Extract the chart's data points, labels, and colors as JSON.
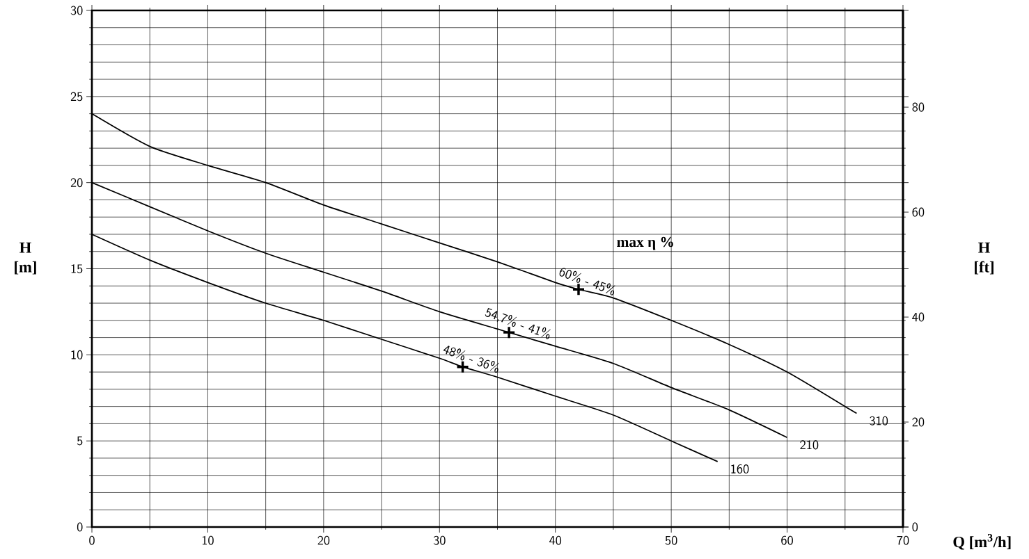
{
  "chart_data": {
    "type": "line",
    "xlabel": "Q [m$^{3}$/h]",
    "ylabel": "H [m]",
    "y2label": "H [ft]",
    "xlim": [
      0,
      70
    ],
    "ylim": [
      0,
      30
    ],
    "xticks": [
      0,
      10,
      20,
      30,
      40,
      50,
      60,
      70
    ],
    "yticks": [
      0,
      5,
      10,
      15,
      20,
      25,
      30
    ],
    "y2lim": [
      0,
      98.43
    ],
    "y2ticks": [
      0,
      20,
      40,
      60,
      80
    ],
    "grid": true,
    "line_style": "solid",
    "marker": "none",
    "series": [
      {
        "name": "310",
        "color": "#000000",
        "x": [
          0,
          5,
          10,
          15,
          20,
          25,
          30,
          35,
          40,
          42,
          45,
          50,
          55,
          60,
          65,
          66
        ],
        "values": [
          24,
          22.1,
          21.0,
          20.0,
          18.7,
          17.6,
          16.5,
          15.4,
          14.2,
          13.8,
          13.3,
          12.0,
          10.6,
          9.0,
          7.0,
          6.6
        ]
      },
      {
        "name": "210",
        "color": "#000000",
        "x": [
          0,
          5,
          10,
          15,
          20,
          25,
          30,
          35,
          36,
          40,
          45,
          50,
          55,
          60
        ],
        "values": [
          20,
          18.6,
          17.2,
          15.9,
          14.8,
          13.7,
          12.5,
          11.5,
          11.3,
          10.5,
          9.5,
          8.1,
          6.8,
          5.2
        ]
      },
      {
        "name": "160",
        "color": "#000000",
        "x": [
          0,
          5,
          10,
          15,
          20,
          25,
          30,
          32,
          35,
          40,
          45,
          50,
          54
        ],
        "values": [
          17,
          15.5,
          14.2,
          13.0,
          12.0,
          10.9,
          9.8,
          9.3,
          8.7,
          7.6,
          6.5,
          5.0,
          3.8
        ]
      },
      {
        "type": "scatter",
        "marker": "cross",
        "color": "#000000",
        "x": [
          42,
          36,
          32
        ],
        "values": [
          13.8,
          11.3,
          9.3
        ]
      }
    ],
    "annotations": [
      "max η %",
      {
        "text": "60% - 45%",
        "x": 42,
        "y": 13.8
      },
      {
        "text": "54,7% - 41%",
        "x": 36,
        "y": 11.3
      },
      {
        "text": "48% - 36%",
        "x": 32,
        "y": 9.3
      }
    ]
  }
}
